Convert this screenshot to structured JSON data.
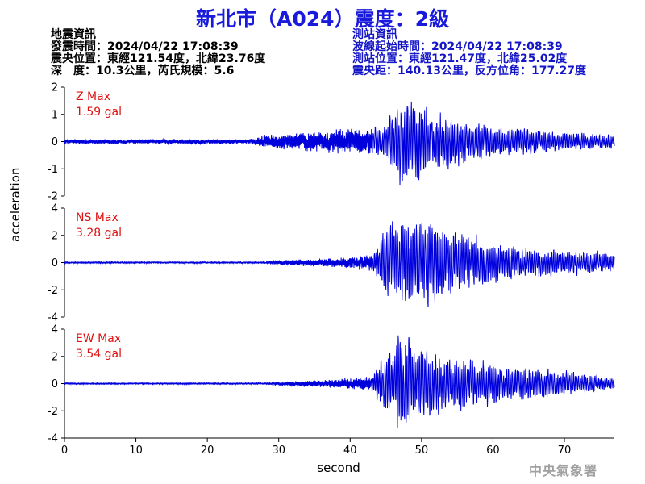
{
  "header": {
    "title": "新北市（A024）震度：2級"
  },
  "earthquake": {
    "heading": "地震資訊",
    "time": "發震時間：2024/04/22 17:08:39",
    "location": "震央位置：東經121.54度，北緯23.76度",
    "depth": "深　度：10.3公里，芮氏規模：5.6"
  },
  "station": {
    "heading": "測站資訊",
    "start_time": "波線起始時間：2024/04/22 17:08:39",
    "location": "測站位置：東經121.47度，北緯25.02度",
    "distance": "震央距：140.13公里，反方位角：177.27度"
  },
  "agency": "中央氣象署",
  "colors": {
    "trace": "#0000dd",
    "max_label": "#e01010",
    "axis": "#000000"
  },
  "chart_data": {
    "type": "line",
    "xlabel": "second",
    "ylabel": "acceleration",
    "xlim": [
      0,
      77
    ],
    "xticks": [
      0,
      10,
      20,
      30,
      40,
      50,
      60,
      70
    ],
    "panels": [
      {
        "name": "Z",
        "max_label": "Z Max",
        "max_value": "1.59 gal",
        "ylim": [
          -2,
          2
        ],
        "yticks": [
          2,
          1,
          0,
          -1,
          -2
        ],
        "peak": 1.59,
        "envelope": [
          [
            0,
            0.07
          ],
          [
            26,
            0.07
          ],
          [
            28,
            0.2
          ],
          [
            35,
            0.32
          ],
          [
            42,
            0.4
          ],
          [
            45,
            0.55
          ],
          [
            47,
            1.3
          ],
          [
            50,
            1.1
          ],
          [
            53,
            0.9
          ],
          [
            55,
            0.7
          ],
          [
            60,
            0.5
          ],
          [
            65,
            0.4
          ],
          [
            70,
            0.3
          ],
          [
            77,
            0.2
          ]
        ]
      },
      {
        "name": "NS",
        "max_label": "NS Max",
        "max_value": "3.28 gal",
        "ylim": [
          -4,
          4
        ],
        "yticks": [
          4,
          2,
          0,
          -2,
          -4
        ],
        "peak": 3.28,
        "envelope": [
          [
            0,
            0.05
          ],
          [
            28,
            0.05
          ],
          [
            30,
            0.15
          ],
          [
            38,
            0.3
          ],
          [
            43,
            0.5
          ],
          [
            45,
            2.2
          ],
          [
            47,
            3.0
          ],
          [
            50,
            2.6
          ],
          [
            52,
            2.8
          ],
          [
            55,
            2.0
          ],
          [
            60,
            1.3
          ],
          [
            65,
            0.9
          ],
          [
            70,
            0.8
          ],
          [
            77,
            0.6
          ]
        ]
      },
      {
        "name": "EW",
        "max_label": "EW Max",
        "max_value": "3.54 gal",
        "ylim": [
          -4,
          4
        ],
        "yticks": [
          4,
          2,
          0,
          -2,
          -4
        ],
        "peak": 3.54,
        "envelope": [
          [
            0,
            0.05
          ],
          [
            28,
            0.05
          ],
          [
            30,
            0.12
          ],
          [
            38,
            0.3
          ],
          [
            43,
            0.5
          ],
          [
            45,
            2.0
          ],
          [
            47,
            3.4
          ],
          [
            50,
            2.4
          ],
          [
            53,
            1.8
          ],
          [
            57,
            1.5
          ],
          [
            60,
            1.3
          ],
          [
            65,
            1.0
          ],
          [
            70,
            0.8
          ],
          [
            77,
            0.4
          ]
        ]
      }
    ]
  }
}
